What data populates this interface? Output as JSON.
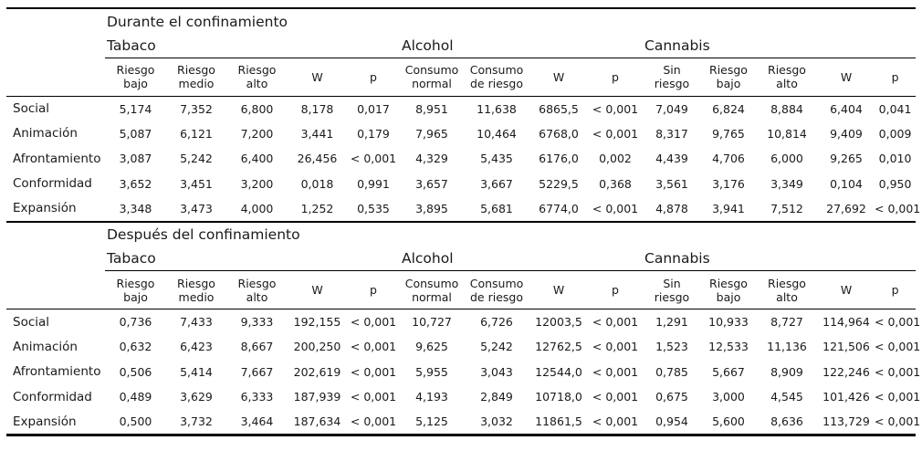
{
  "sections": [
    {
      "title": "Durante el confinamiento",
      "groups": [
        "Tabaco",
        "Alcohol",
        "Cannabis"
      ],
      "subheaders": [
        [
          "Riesgo",
          "bajo"
        ],
        [
          "Riesgo",
          "medio"
        ],
        [
          "Riesgo",
          "alto"
        ],
        [
          "W",
          ""
        ],
        [
          "p",
          ""
        ],
        [
          "Consumo",
          "normal"
        ],
        [
          "Consumo",
          "de riesgo"
        ],
        [
          "W",
          ""
        ],
        [
          "p",
          ""
        ],
        [
          "Sin",
          "riesgo"
        ],
        [
          "Riesgo",
          "bajo"
        ],
        [
          "Riesgo",
          "alto"
        ],
        [
          "W",
          ""
        ],
        [
          "p",
          ""
        ]
      ],
      "rows": [
        {
          "label": "Social",
          "values": [
            "5,174",
            "7,352",
            "6,800",
            "8,178",
            "0,017",
            "8,951",
            "11,638",
            "6865,5",
            "< 0,001",
            "7,049",
            "6,824",
            "8,884",
            "6,404",
            "0,041"
          ]
        },
        {
          "label": "Animación",
          "values": [
            "5,087",
            "6,121",
            "7,200",
            "3,441",
            "0,179",
            "7,965",
            "10,464",
            "6768,0",
            "< 0,001",
            "8,317",
            "9,765",
            "10,814",
            "9,409",
            "0,009"
          ]
        },
        {
          "label": "Afrontamiento",
          "values": [
            "3,087",
            "5,242",
            "6,400",
            "26,456",
            "< 0,001",
            "4,329",
            "5,435",
            "6176,0",
            "0,002",
            "4,439",
            "4,706",
            "6,000",
            "9,265",
            "0,010"
          ]
        },
        {
          "label": "Conformidad",
          "values": [
            "3,652",
            "3,451",
            "3,200",
            "0,018",
            "0,991",
            "3,657",
            "3,667",
            "5229,5",
            "0,368",
            "3,561",
            "3,176",
            "3,349",
            "0,104",
            "0,950"
          ]
        },
        {
          "label": "Expansión",
          "values": [
            "3,348",
            "3,473",
            "4,000",
            "1,252",
            "0,535",
            "3,895",
            "5,681",
            "6774,0",
            "< 0,001",
            "4,878",
            "3,941",
            "7,512",
            "27,692",
            "< 0,001"
          ]
        }
      ]
    },
    {
      "title": "Después del confinamiento",
      "groups": [
        "Tabaco",
        "Alcohol",
        "Cannabis"
      ],
      "subheaders": [
        [
          "Riesgo",
          "bajo"
        ],
        [
          "Riesgo",
          "medio"
        ],
        [
          "Riesgo",
          "alto"
        ],
        [
          "W",
          ""
        ],
        [
          "p",
          ""
        ],
        [
          "Consumo",
          "normal"
        ],
        [
          "Consumo",
          "de riesgo"
        ],
        [
          "W",
          ""
        ],
        [
          "p",
          ""
        ],
        [
          "Sin",
          "riesgo"
        ],
        [
          "Riesgo",
          "bajo"
        ],
        [
          "Riesgo",
          "alto"
        ],
        [
          "W",
          ""
        ],
        [
          "p",
          ""
        ]
      ],
      "rows": [
        {
          "label": "Social",
          "values": [
            "0,736",
            "7,433",
            "9,333",
            "192,155",
            "< 0,001",
            "10,727",
            "6,726",
            "12003,5",
            "< 0,001",
            "1,291",
            "10,933",
            "8,727",
            "114,964",
            "< 0,001"
          ]
        },
        {
          "label": "Animación",
          "values": [
            "0,632",
            "6,423",
            "8,667",
            "200,250",
            "< 0,001",
            "9,625",
            "5,242",
            "12762,5",
            "< 0,001",
            "1,523",
            "12,533",
            "11,136",
            "121,506",
            "< 0,001"
          ]
        },
        {
          "label": "Afrontamiento",
          "values": [
            "0,506",
            "5,414",
            "7,667",
            "202,619",
            "< 0,001",
            "5,955",
            "3,043",
            "12544,0",
            "< 0,001",
            "0,785",
            "5,667",
            "8,909",
            "122,246",
            "< 0,001"
          ]
        },
        {
          "label": "Conformidad",
          "values": [
            "0,489",
            "3,629",
            "6,333",
            "187,939",
            "< 0,001",
            "4,193",
            "2,849",
            "10718,0",
            "< 0,001",
            "0,675",
            "3,000",
            "4,545",
            "101,426",
            "< 0,001"
          ]
        },
        {
          "label": "Expansión",
          "values": [
            "0,500",
            "3,732",
            "3,464",
            "187,634",
            "< 0,001",
            "5,125",
            "3,032",
            "11861,5",
            "< 0,001",
            "0,954",
            "5,600",
            "8,636",
            "113,729",
            "< 0,001"
          ]
        }
      ]
    }
  ]
}
